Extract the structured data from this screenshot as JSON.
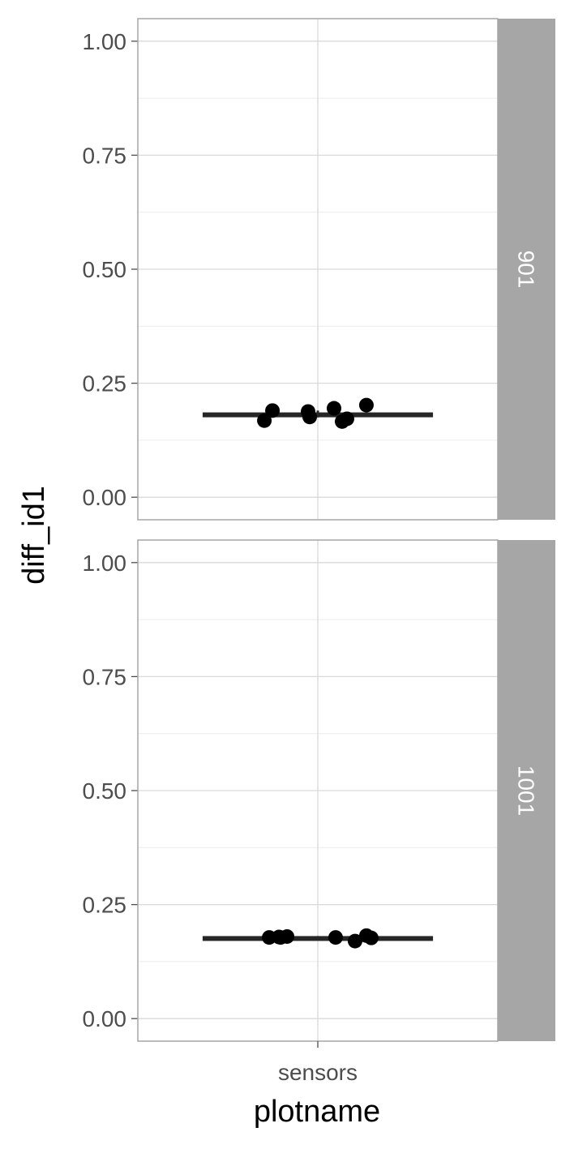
{
  "chart_data": {
    "type": "scatter",
    "xlabel": "plotname",
    "ylabel": "diff_id1",
    "categories": [
      "sensors"
    ],
    "ylim": [
      0,
      1
    ],
    "y_ticks": [
      "0.00",
      "0.25",
      "0.50",
      "0.75",
      "1.00"
    ],
    "grid": true,
    "facets": [
      {
        "label": "901",
        "points": [
          0.168,
          0.19,
          0.188,
          0.176,
          0.195,
          0.166,
          0.172,
          0.202
        ],
        "jitter": [
          -0.33,
          -0.28,
          -0.06,
          -0.05,
          0.1,
          0.15,
          0.18,
          0.3
        ],
        "summary": {
          "mean": 0.182,
          "low": 0.178,
          "high": 0.186,
          "err_low": 0.175,
          "err_high": 0.19
        }
      },
      {
        "label": "1001",
        "points": [
          0.178,
          0.179,
          0.178,
          0.18,
          0.178,
          0.17,
          0.182,
          0.177
        ],
        "jitter": [
          -0.3,
          -0.24,
          -0.23,
          -0.19,
          0.11,
          0.23,
          0.3,
          0.33
        ],
        "summary": {
          "mean": 0.178,
          "low": 0.176,
          "high": 0.181,
          "err_low": 0.175,
          "err_high": 0.181
        }
      }
    ]
  },
  "colors": {
    "panel_border": "#a6a6a6",
    "grid_major": "#d9d9d9",
    "grid_minor": "#ececec",
    "strip_bg": "#a6a6a6",
    "point": "#000000",
    "summary_bar": "#262626"
  }
}
